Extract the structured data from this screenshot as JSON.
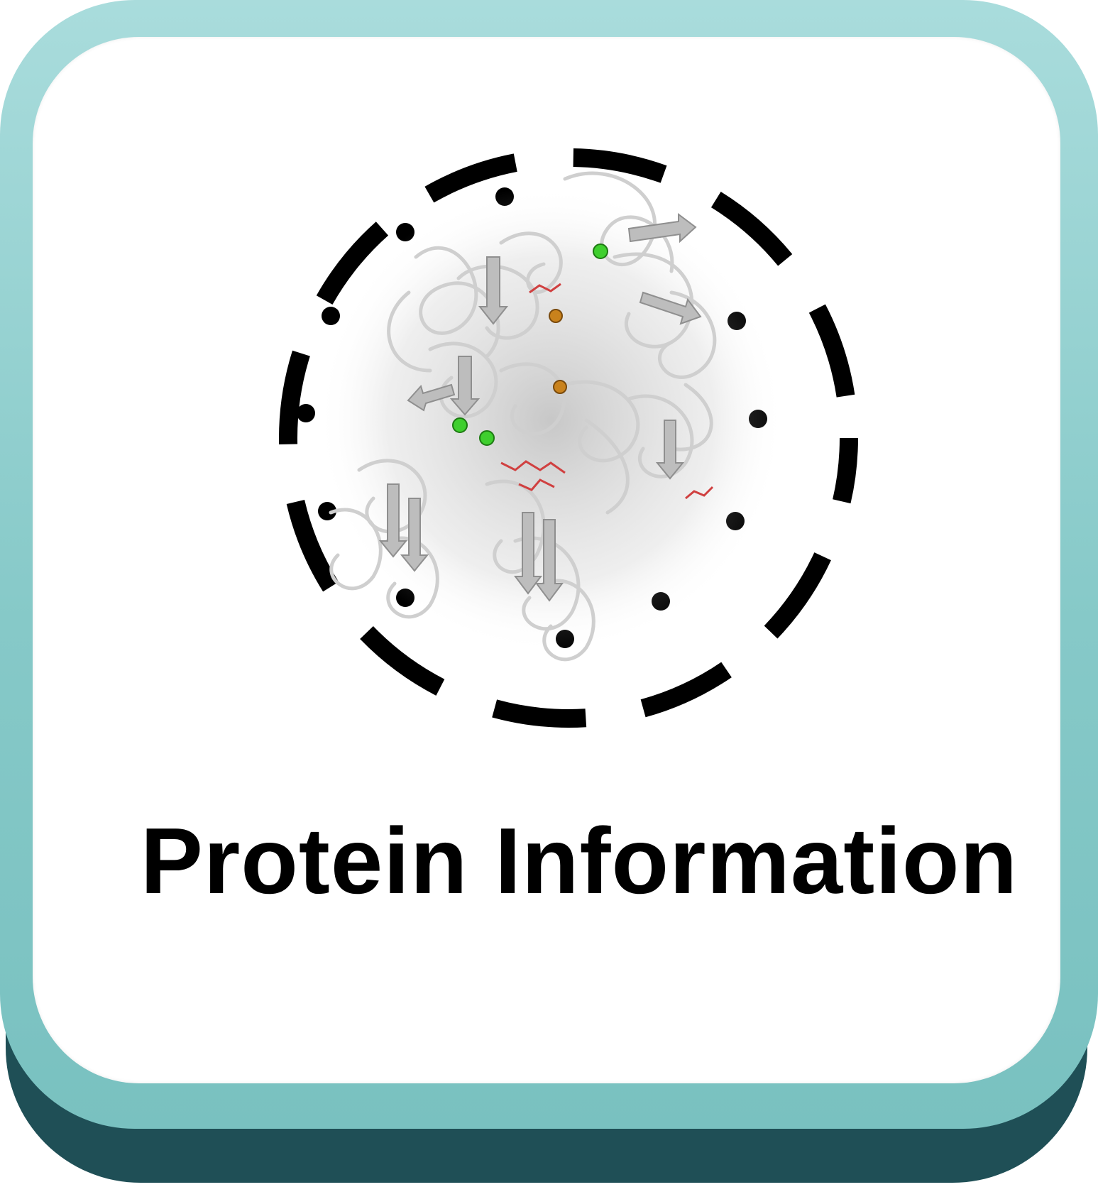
{
  "tile": {
    "title": "Protein Information",
    "icon": "protein-structure-icon",
    "colors": {
      "frame": "#86c9c8",
      "frame_shadow": "#1f4f56",
      "face": "#ffffff",
      "text": "#000000",
      "ring": "#000000",
      "structure": "#c9c9c9",
      "ion_green": "#3fcf2e",
      "ion_orange": "#c9821c"
    }
  }
}
